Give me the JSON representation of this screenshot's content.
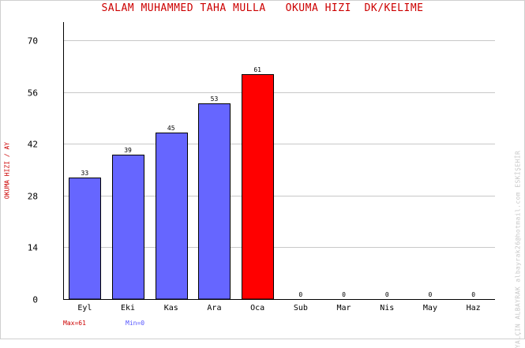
{
  "chart_data": {
    "type": "bar",
    "title": "SALAM MUHAMMED TAHA MULLA   OKUMA HIZI  DK/KELIME",
    "ylabel": "OKUMA HIZI / AY",
    "xlabel": "",
    "categories": [
      "Eyl",
      "Eki",
      "Kas",
      "Ara",
      "Oca",
      "Sub",
      "Mar",
      "Nis",
      "May",
      "Haz"
    ],
    "values": [
      33,
      39,
      45,
      53,
      61,
      0,
      0,
      0,
      0,
      0
    ],
    "ylim": [
      0,
      75
    ],
    "yticks": [
      0,
      14,
      28,
      42,
      56,
      70
    ],
    "grid": true,
    "colors": {
      "bar": "#6666ff",
      "max_bar": "#ff0000",
      "outline": "#000000",
      "grid": "#c8c8c8",
      "title": "#cc0000"
    },
    "max_label": "Max=61",
    "min_label": "Min=0",
    "credit": "YALÇIN ALBAYRAK  albayrak26@hotmail.com  ESKİŞEHİR"
  }
}
